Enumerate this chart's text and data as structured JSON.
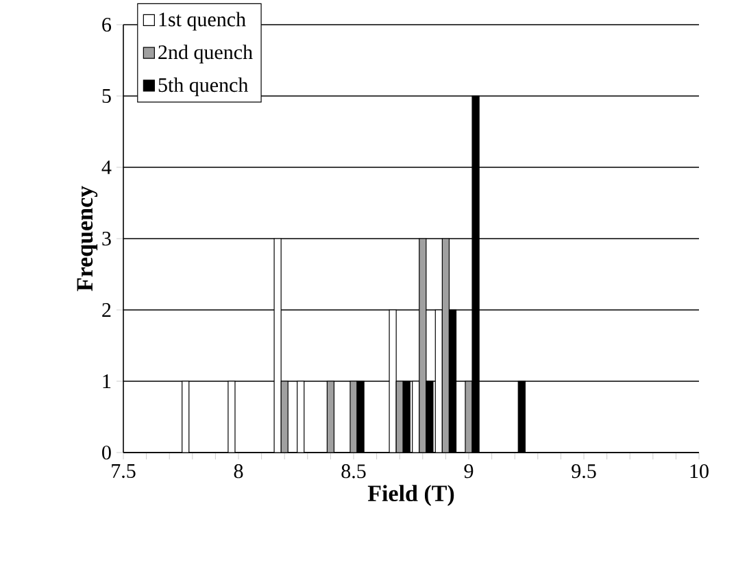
{
  "chart_data": {
    "type": "bar",
    "xlabel": "Field (T)",
    "ylabel": "Frequency",
    "x": [
      7.8,
      8.0,
      8.2,
      8.3,
      8.4,
      8.5,
      8.7,
      8.8,
      8.9,
      9.0,
      9.2
    ],
    "series": [
      {
        "name": "1st quench",
        "color": "#ffffff",
        "values": [
          1,
          1,
          3,
          1,
          null,
          null,
          2,
          1,
          2,
          null,
          null
        ]
      },
      {
        "name": "2nd quench",
        "color": "#a0a0a0",
        "values": [
          null,
          null,
          1,
          null,
          1,
          1,
          1,
          3,
          3,
          1,
          null
        ]
      },
      {
        "name": "5th quench",
        "color": "#000000",
        "values": [
          null,
          null,
          null,
          null,
          null,
          1,
          1,
          1,
          2,
          5,
          1
        ]
      }
    ],
    "xlim": [
      7.5,
      10
    ],
    "xticks": [
      7.5,
      8,
      8.5,
      9,
      9.5,
      10
    ],
    "ylim": [
      0,
      6
    ],
    "yticks": [
      0,
      1,
      2,
      3,
      4,
      5,
      6
    ],
    "grid": "y",
    "legend": "top left"
  }
}
